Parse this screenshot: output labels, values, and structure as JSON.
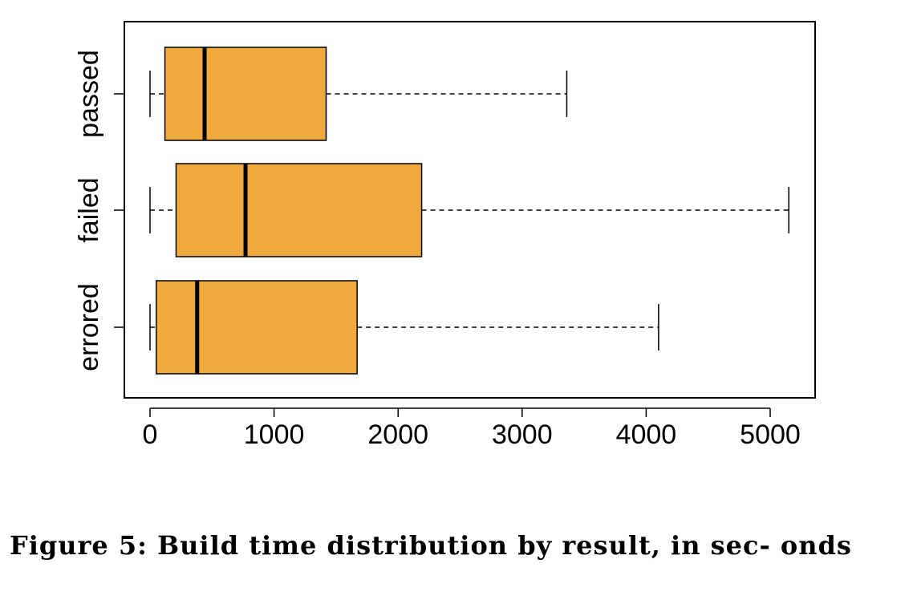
{
  "caption": "Figure 5:  Build time distribution by result, in sec- onds",
  "chart_data": {
    "type": "boxplot",
    "orientation": "horizontal",
    "title": "",
    "xlabel": "",
    "ylabel": "",
    "xlim": [
      -200,
      5360
    ],
    "x_ticks": [
      0,
      1000,
      2000,
      3000,
      4000,
      5000
    ],
    "categories": [
      "errored",
      "failed",
      "passed"
    ],
    "box_color": "#f0a93d",
    "series": [
      {
        "label": "errored",
        "min": 0,
        "q1": 50,
        "median": 380,
        "q3": 1670,
        "max": 4100
      },
      {
        "label": "failed",
        "min": 0,
        "q1": 210,
        "median": 770,
        "q3": 2190,
        "max": 5150
      },
      {
        "label": "passed",
        "min": 0,
        "q1": 120,
        "median": 440,
        "q3": 1420,
        "max": 3360
      }
    ],
    "grid": false,
    "legend": "none"
  }
}
